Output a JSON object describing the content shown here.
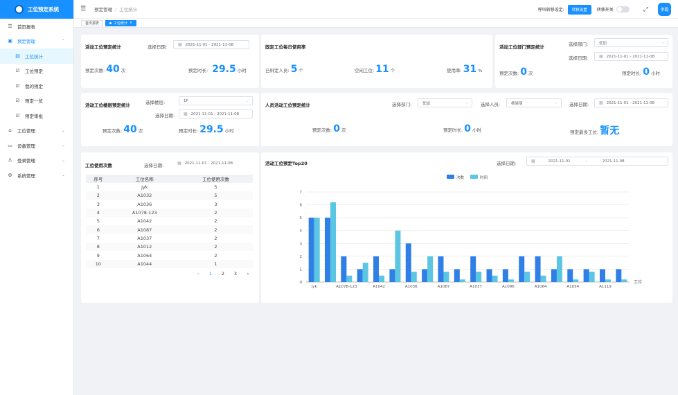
{
  "app": {
    "title": "工位预定系统"
  },
  "sidebar": {
    "items": [
      {
        "icon": "list-icon",
        "glyph": "☰",
        "label": "首页报表"
      },
      {
        "icon": "calendar-icon",
        "glyph": "▣",
        "label": "预定管理"
      },
      {
        "icon": "doc-icon",
        "glyph": "▤",
        "label": "工位统计"
      },
      {
        "icon": "checkbox-icon",
        "glyph": "☑",
        "label": "工位预定"
      },
      {
        "icon": "checkbox-icon",
        "glyph": "☑",
        "label": "我的预定"
      },
      {
        "icon": "checkbox-icon",
        "glyph": "☑",
        "label": "预定一览"
      },
      {
        "icon": "checkbox-icon",
        "glyph": "☑",
        "label": "预定审批"
      },
      {
        "icon": "building-icon",
        "glyph": "⌂",
        "label": "工位管理"
      },
      {
        "icon": "monitor-icon",
        "glyph": "▭",
        "label": "设备管理"
      },
      {
        "icon": "user-icon",
        "glyph": "♙",
        "label": "登录管理"
      },
      {
        "icon": "gear-icon",
        "glyph": "⚙",
        "label": "系统管理"
      }
    ]
  },
  "header": {
    "breadcrumb": [
      "预定管理",
      "工位统计"
    ],
    "transfer_label": "呼叫转移设定:",
    "transfer_button": "转移设置",
    "switch_label": "转移开关",
    "user": "李磊"
  },
  "tags": [
    "首页报表",
    "工位统计"
  ],
  "card1": {
    "title": "活动工位预定统计",
    "date_label": "选择日期:",
    "date_value": "2021-11-01  -  2021-11-08",
    "count_label": "预定次数:",
    "count_value": "40",
    "count_unit": "次",
    "duration_label": "预定时长:",
    "duration_value": "29.5",
    "duration_unit": "小时"
  },
  "card2": {
    "title": "固定工位每日使用率",
    "bound_label": "已绑定人员:",
    "bound_value": "5",
    "bound_unit": "个",
    "idle_label": "空闲工位:",
    "idle_value": "11",
    "idle_unit": "个",
    "rate_label": "使用率:",
    "rate_value": "31",
    "rate_unit": "%"
  },
  "card3": {
    "title": "活动工位部门预定统计",
    "dept_label": "选择部门:",
    "dept_value": "优加",
    "date_label": "选择日期:",
    "date_value": "2021-11-01  -  2021-11-08",
    "count_label": "预定次数:",
    "count_value": "0",
    "count_unit": "次",
    "duration_label": "预定时长:",
    "duration_value": "0",
    "duration_unit": "小时"
  },
  "card4": {
    "title": "活动工位楼层预定统计",
    "floor_label": "选择楼层:",
    "floor_value": "1F",
    "date_label": "选择日期:",
    "date_value": "2021-11-01  -  2021-11-08",
    "count_label": "预定次数:",
    "count_value": "40",
    "count_unit": "次",
    "duration_label": "预定时长:",
    "duration_value": "29.5",
    "duration_unit": "小时"
  },
  "card5": {
    "title": "人员活动工位预定统计",
    "dept_label": "选择部门:",
    "dept_value": "优加",
    "person_label": "选择人员:",
    "person_value": "杨晓丽",
    "date_label": "选择日期:",
    "date_value": "2021-11-01  -  2021-11-08",
    "count_label": "预定次数:",
    "count_value": "0",
    "count_unit": "次",
    "duration_label": "预定时长:",
    "duration_value": "0",
    "duration_unit": "小时",
    "most_label": "预定最多工位:",
    "most_value": "暂无"
  },
  "card6": {
    "title": "工位使用次数",
    "date_label": "选择日期:",
    "date_value": "2021-11-01  -  2021-11-08",
    "columns": [
      "序号",
      "工位名称",
      "工位使用次数"
    ],
    "rows": [
      [
        "1",
        "jyk",
        "5"
      ],
      [
        "2",
        "A1032",
        "5"
      ],
      [
        "3",
        "A1036",
        "3"
      ],
      [
        "4",
        "A1078-123",
        "2"
      ],
      [
        "5",
        "A1042",
        "2"
      ],
      [
        "6",
        "A1087",
        "2"
      ],
      [
        "7",
        "A1037",
        "2"
      ],
      [
        "8",
        "A1012",
        "2"
      ],
      [
        "9",
        "A1064",
        "2"
      ],
      [
        "10",
        "A1044",
        "1"
      ]
    ],
    "pager": {
      "prev": "‹",
      "pages": [
        "1",
        "2",
        "3"
      ],
      "next": "›"
    }
  },
  "card7": {
    "title": "活动工位预定Top20",
    "date_label": "选择日期:",
    "date_start": "2021-11-01",
    "date_sep": "-",
    "date_end": "2021-11-08"
  },
  "chart_data": {
    "type": "bar",
    "title": "活动工位预定Top20",
    "xlabel": "工位",
    "ylabel": "",
    "ylim": [
      0,
      7
    ],
    "yticks": [
      0,
      1,
      2,
      3,
      4,
      5,
      6,
      7
    ],
    "legend_position": "top",
    "categories": [
      "jyk",
      "",
      "A1078-123",
      "",
      "A1042",
      "",
      "A1036",
      "",
      "A1087",
      "",
      "A1037",
      "",
      "A1096",
      "",
      "A1064",
      "",
      "A1054",
      "",
      "A1119",
      ""
    ],
    "series": [
      {
        "name": "次数",
        "color": "#2f7fe6",
        "values": [
          5,
          5,
          2,
          1,
          2,
          1,
          3,
          1,
          2,
          1,
          2,
          1,
          1,
          2,
          2,
          1,
          1,
          1,
          1,
          1
        ]
      },
      {
        "name": "时间",
        "color": "#5bc6e3",
        "values": [
          5,
          6.2,
          0.5,
          1.5,
          0.5,
          4,
          0.8,
          2,
          0.8,
          0.2,
          0.8,
          0.5,
          0.2,
          0.8,
          0.5,
          2,
          0.2,
          0.8,
          0.2,
          0.2
        ]
      }
    ]
  }
}
